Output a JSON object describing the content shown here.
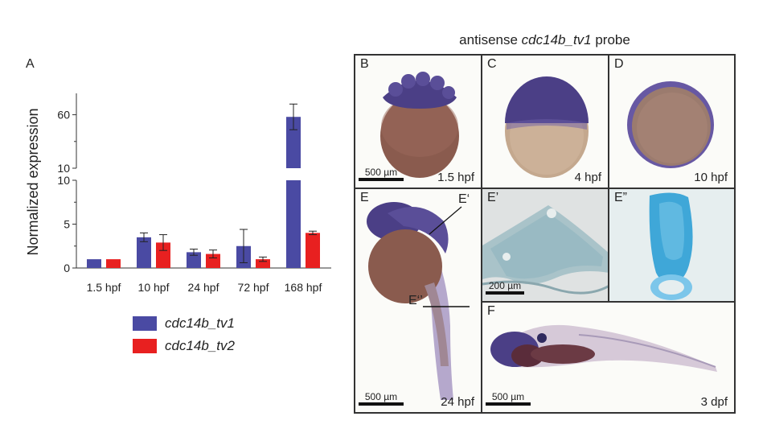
{
  "chart_data": {
    "type": "bar",
    "panel_label": "A",
    "ylabel": "Normalized expression",
    "categories": [
      "1.5 hpf",
      "10 hpf",
      "24 hpf",
      "72 hpf",
      "168 hpf"
    ],
    "series": [
      {
        "name": "cdc14b_tv1",
        "color": "#4a4aa3",
        "values": [
          1.0,
          3.5,
          1.8,
          2.5,
          58
        ],
        "errors": [
          0.0,
          0.5,
          0.35,
          1.9,
          12
        ]
      },
      {
        "name": "cdc14b_tv2",
        "color": "#e82020",
        "values": [
          1.0,
          2.9,
          1.6,
          1.0,
          4.0
        ],
        "errors": [
          0.0,
          0.9,
          0.45,
          0.25,
          0.2
        ]
      }
    ],
    "y_axis_lower": {
      "range": [
        0,
        10
      ],
      "ticks": [
        "0",
        "5",
        "10"
      ]
    },
    "y_axis_upper": {
      "range": [
        10,
        80
      ],
      "ticks": [
        "10",
        "60"
      ]
    },
    "broken_axis": true,
    "grid": false,
    "legend_placement": "bottom"
  },
  "figure": {
    "title_prefix": "antisense ",
    "title_italic": "cdc14b_tv1",
    "title_suffix": " probe",
    "panels": {
      "B": {
        "label": "B",
        "stage": "1.5 hpf",
        "scale": "500 µm"
      },
      "C": {
        "label": "C",
        "stage": "4 hpf"
      },
      "D": {
        "label": "D",
        "stage": "10 hpf"
      },
      "E": {
        "label": "E",
        "stage": "24 hpf",
        "scale": "500 µm",
        "callout_1": "E‘",
        "callout_2": "E‘’"
      },
      "E1": {
        "label": "E’",
        "scale": "200 µm"
      },
      "E2": {
        "label": "E”"
      },
      "F": {
        "label": "F",
        "stage": "3 dpf",
        "scale": "500 µm"
      }
    }
  },
  "colors": {
    "stain_purple": "#4b3f86",
    "yolk_brown": "#8a5b4e",
    "section_blue": "#3fa7d8"
  }
}
